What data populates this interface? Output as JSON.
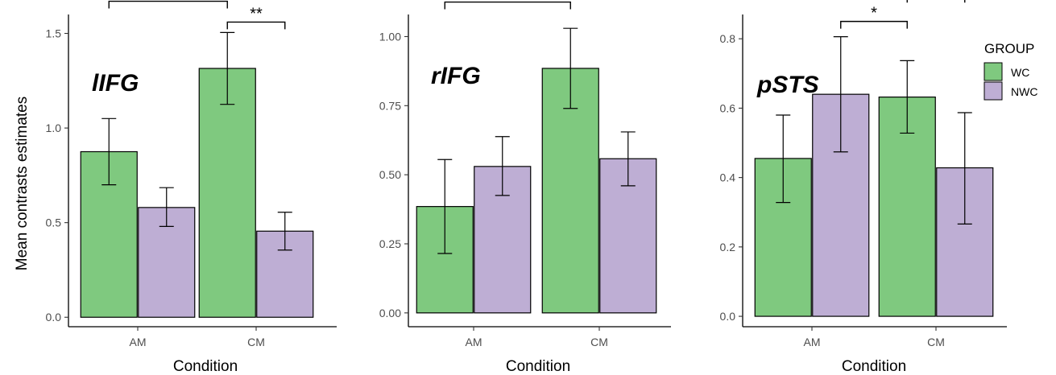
{
  "y_axis_title": "Mean contrasts estimates",
  "legend": {
    "title": "GROUP",
    "placement": "right",
    "entries": [
      {
        "label": "WC",
        "color": "#7fc97f"
      },
      {
        "label": "NWC",
        "color": "#beaed4"
      }
    ]
  },
  "chart_data": [
    {
      "type": "bar",
      "title": "lIFG",
      "xlabel": "Condition",
      "ylabel": "Mean contrasts estimates",
      "categories": [
        "AM",
        "CM"
      ],
      "ylim": [
        -0.05,
        1.6
      ],
      "yticks": [
        0.0,
        0.5,
        1.0,
        1.5
      ],
      "ytick_labels": [
        "0.0",
        "0.5",
        "1.0",
        "1.5"
      ],
      "grid": false,
      "series": [
        {
          "name": "WC",
          "values": [
            0.875,
            1.315
          ],
          "err_low": [
            0.7,
            1.125
          ],
          "err_high": [
            1.05,
            1.505
          ]
        },
        {
          "name": "NWC",
          "values": [
            0.58,
            0.455
          ],
          "err_low": [
            0.48,
            0.355
          ],
          "err_high": [
            0.685,
            0.555
          ]
        }
      ],
      "significance": [
        {
          "from": [
            0,
            0
          ],
          "to": [
            1,
            0
          ],
          "y": 1.67,
          "label": "**"
        },
        {
          "from": [
            1,
            0
          ],
          "to": [
            1,
            1
          ],
          "y": 1.56,
          "label": "**"
        }
      ]
    },
    {
      "type": "bar",
      "title": "rIFG",
      "xlabel": "Condition",
      "ylabel": "",
      "categories": [
        "AM",
        "CM"
      ],
      "ylim": [
        -0.05,
        1.08
      ],
      "yticks": [
        0.0,
        0.25,
        0.5,
        0.75,
        1.0
      ],
      "ytick_labels": [
        "0.00",
        "0.25",
        "0.50",
        "0.75",
        "1.00"
      ],
      "grid": false,
      "series": [
        {
          "name": "WC",
          "values": [
            0.385,
            0.885
          ],
          "err_low": [
            0.215,
            0.74
          ],
          "err_high": [
            0.555,
            1.03
          ]
        },
        {
          "name": "NWC",
          "values": [
            0.53,
            0.558
          ],
          "err_low": [
            0.425,
            0.46
          ],
          "err_high": [
            0.638,
            0.655
          ]
        }
      ],
      "significance": [
        {
          "from": [
            0,
            0
          ],
          "to": [
            1,
            0
          ],
          "y": 1.125,
          "label": "**"
        }
      ]
    },
    {
      "type": "bar",
      "title": "pSTS",
      "xlabel": "Condition",
      "ylabel": "",
      "categories": [
        "AM",
        "CM"
      ],
      "ylim": [
        -0.03,
        0.87
      ],
      "yticks": [
        0.0,
        0.2,
        0.4,
        0.6,
        0.8
      ],
      "ytick_labels": [
        "0.0",
        "0.2",
        "0.4",
        "0.6",
        "0.8"
      ],
      "grid": false,
      "series": [
        {
          "name": "WC",
          "values": [
            0.455,
            0.632
          ],
          "err_low": [
            0.328,
            0.528
          ],
          "err_high": [
            0.58,
            0.737
          ]
        },
        {
          "name": "NWC",
          "values": [
            0.64,
            0.428
          ],
          "err_low": [
            0.474,
            0.266
          ],
          "err_high": [
            0.806,
            0.587
          ]
        }
      ],
      "significance": [
        {
          "from": [
            0,
            1
          ],
          "to": [
            1,
            0
          ],
          "y": 0.85,
          "label": "*"
        },
        {
          "from": [
            1,
            0
          ],
          "to": [
            1,
            1
          ],
          "y": 0.925,
          "label": "*"
        }
      ]
    }
  ]
}
